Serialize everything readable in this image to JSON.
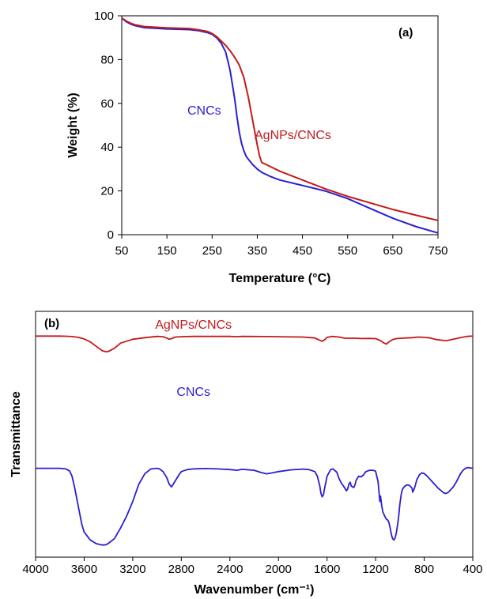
{
  "chart_data": [
    {
      "type": "line",
      "panel_label": "(a)",
      "xlabel": "Temperature (°C)",
      "ylabel": "Weight (%)",
      "xlim": [
        50,
        750
      ],
      "ylim": [
        0,
        100
      ],
      "xticks": [
        "50",
        "150",
        "250",
        "350",
        "450",
        "550",
        "650",
        "750"
      ],
      "yticks": [
        "0",
        "20",
        "40",
        "60",
        "80",
        "100"
      ],
      "grid": false,
      "series": [
        {
          "name": "CNCs",
          "color": "#2a1fd1",
          "x": [
            50,
            60,
            70,
            80,
            100,
            150,
            200,
            220,
            240,
            250,
            260,
            270,
            280,
            290,
            300,
            305,
            310,
            315,
            320,
            325,
            330,
            340,
            350,
            360,
            380,
            400,
            450,
            500,
            550,
            600,
            650,
            700,
            750
          ],
          "y": [
            99,
            97.3,
            96.2,
            95.5,
            94.6,
            94,
            93.7,
            93.2,
            92.3,
            91.5,
            90,
            87.5,
            83.5,
            75,
            62,
            54,
            47,
            42,
            38.5,
            36,
            34.5,
            32,
            30,
            28.5,
            26.5,
            25,
            22.5,
            20,
            16.5,
            12,
            7.5,
            3.8,
            0.8
          ]
        },
        {
          "name": "AgNPs/CNCs",
          "color": "#c41a1a",
          "x": [
            50,
            60,
            70,
            80,
            100,
            150,
            200,
            220,
            240,
            250,
            260,
            270,
            280,
            290,
            300,
            310,
            320,
            330,
            340,
            350,
            355,
            360,
            370,
            380,
            400,
            450,
            500,
            550,
            600,
            650,
            700,
            750
          ],
          "y": [
            99,
            97.6,
            96.6,
            95.9,
            95.1,
            94.5,
            94.2,
            93.6,
            92.8,
            91.9,
            90.5,
            88.5,
            86.5,
            84,
            81,
            77.5,
            72,
            63,
            52,
            41,
            36,
            33,
            32,
            31,
            29,
            25,
            21,
            17.5,
            14.5,
            11.5,
            9,
            6.5
          ]
        }
      ]
    },
    {
      "type": "line",
      "panel_label": "(b)",
      "xlabel": "Wavenumber (cm⁻¹)",
      "ylabel": "Transmittance",
      "xlim": [
        4000,
        400
      ],
      "x_reversed": true,
      "xticks": [
        "4000",
        "3600",
        "3200",
        "2800",
        "2400",
        "2000",
        "1600",
        "1200",
        "800",
        "400"
      ],
      "ylim": [
        0,
        100
      ],
      "y_units": "arbitrary (stacked spectra, no numeric ticks)",
      "grid": false,
      "series": [
        {
          "name": "AgNPs/CNCs",
          "color": "#c41a1a",
          "x": [
            4000,
            3800,
            3750,
            3700,
            3650,
            3600,
            3550,
            3500,
            3450,
            3420,
            3400,
            3350,
            3300,
            3200,
            3100,
            3000,
            2950,
            2920,
            2900,
            2880,
            2850,
            2800,
            2700,
            2400,
            2340,
            2300,
            2100,
            2000,
            1800,
            1700,
            1660,
            1640,
            1620,
            1600,
            1560,
            1500,
            1450,
            1430,
            1400,
            1380,
            1320,
            1250,
            1200,
            1160,
            1130,
            1110,
            1090,
            1060,
            1030,
            1000,
            950,
            900,
            850,
            800,
            750,
            700,
            650,
            620,
            600,
            550,
            500,
            450,
            400
          ],
          "y": [
            91,
            91,
            90.8,
            90.2,
            89,
            86.5,
            82,
            75,
            68,
            66.5,
            67,
            72,
            80,
            86,
            88.5,
            90.5,
            90,
            88,
            86,
            87,
            89.5,
            90,
            90.5,
            90.5,
            90,
            90.5,
            90.3,
            90,
            89.5,
            88,
            84.5,
            83,
            85,
            89,
            90.5,
            89.5,
            87.5,
            87.8,
            87.5,
            87.8,
            87.2,
            87.3,
            87,
            84,
            80,
            78.5,
            82,
            85.5,
            87,
            87.5,
            88,
            88.5,
            89.5,
            89,
            88,
            85.5,
            84.5,
            84,
            84.5,
            86.5,
            88.5,
            90.5,
            91
          ]
        },
        {
          "name": "CNCs",
          "color": "#2a1fd1",
          "x": [
            4000,
            3800,
            3750,
            3720,
            3700,
            3680,
            3650,
            3620,
            3600,
            3550,
            3500,
            3450,
            3420,
            3400,
            3350,
            3300,
            3250,
            3200,
            3150,
            3100,
            3050,
            3000,
            2980,
            2950,
            2920,
            2900,
            2880,
            2850,
            2820,
            2800,
            2750,
            2700,
            2600,
            2500,
            2400,
            2340,
            2300,
            2200,
            2150,
            2100,
            2050,
            2000,
            1900,
            1800,
            1750,
            1700,
            1680,
            1660,
            1650,
            1640,
            1630,
            1620,
            1600,
            1570,
            1550,
            1520,
            1500,
            1480,
            1460,
            1440,
            1430,
            1420,
            1410,
            1400,
            1380,
            1370,
            1360,
            1340,
            1320,
            1300,
            1280,
            1250,
            1220,
            1200,
            1180,
            1170,
            1165,
            1160,
            1150,
            1140,
            1120,
            1110,
            1100,
            1090,
            1080,
            1070,
            1060,
            1050,
            1040,
            1030,
            1020,
            1010,
            1000,
            990,
            980,
            960,
            940,
            920,
            900,
            895,
            880,
            860,
            840,
            820,
            800,
            780,
            760,
            740,
            720,
            700,
            680,
            660,
            640,
            620,
            600,
            580,
            560,
            540,
            520,
            500,
            480,
            460,
            440,
            420,
            400
          ],
          "y": [
            58,
            58,
            57.5,
            56,
            52,
            44,
            30,
            16,
            10,
            4,
            1.2,
            0.2,
            0.4,
            1.5,
            5,
            13,
            22,
            33,
            46,
            54,
            57.5,
            58,
            57.5,
            55.5,
            51,
            46,
            44,
            48.5,
            53,
            55.5,
            57,
            57.5,
            57.8,
            57.5,
            57,
            56.5,
            57.2,
            56.5,
            55,
            53.8,
            54.5,
            55.5,
            56.8,
            57.4,
            57,
            55.5,
            52,
            45,
            39,
            36.5,
            38,
            43,
            52,
            57,
            57.5,
            55,
            50,
            46.5,
            44,
            41,
            42.5,
            46,
            47.5,
            44.5,
            43.5,
            45.5,
            49,
            52,
            51.5,
            53,
            55.5,
            56.5,
            56.5,
            55.8,
            48,
            38,
            33,
            37,
            30,
            25,
            21,
            19.5,
            19,
            17,
            13,
            8,
            5,
            4,
            5.5,
            9,
            15,
            22,
            31,
            38,
            42,
            44.5,
            45.5,
            45,
            43,
            40,
            43,
            49.5,
            53,
            54.5,
            54,
            52.5,
            50.5,
            48.5,
            46.5,
            44.5,
            42.5,
            41,
            39.5,
            39,
            40,
            42,
            44,
            47,
            50.5,
            54,
            56.5,
            58,
            58.5,
            58.3,
            58
          ]
        }
      ]
    }
  ]
}
